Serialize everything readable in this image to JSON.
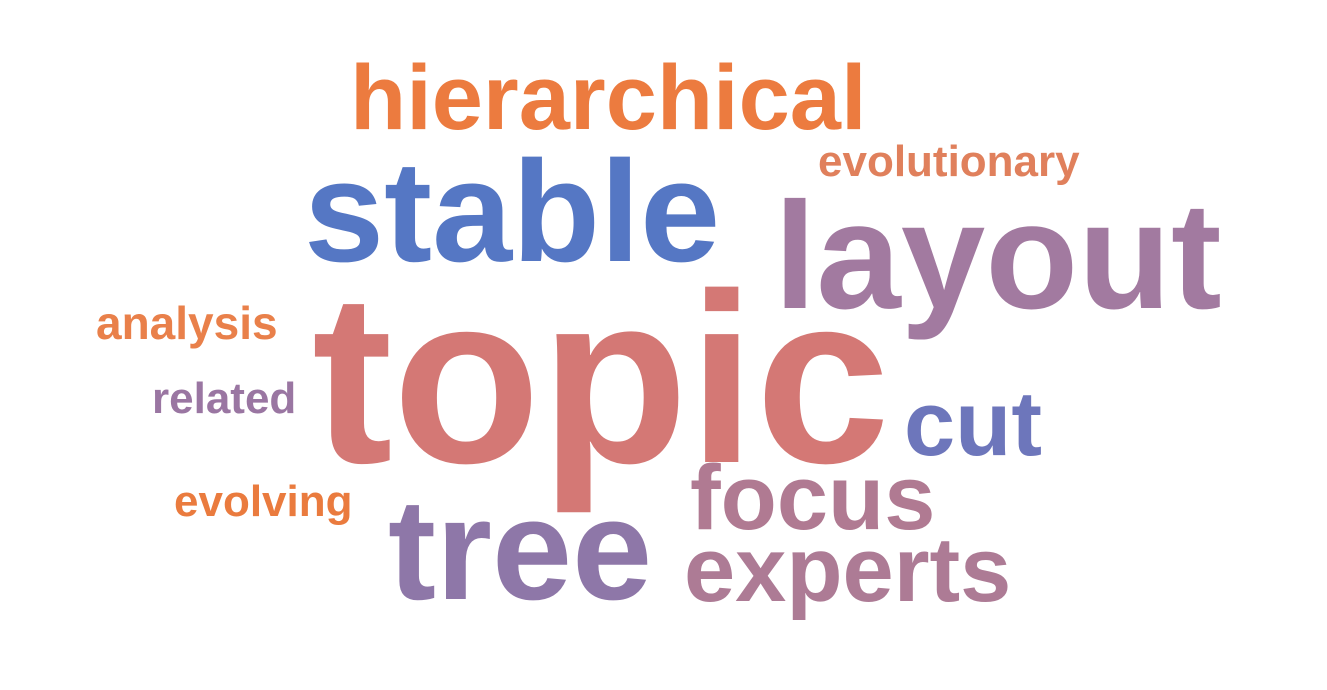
{
  "words": [
    {
      "id": "hierarchical",
      "text": "hierarchical",
      "color": "#ec7b3f"
    },
    {
      "id": "evolutionary",
      "text": "evolutionary",
      "color": "#e0805c"
    },
    {
      "id": "stable",
      "text": "stable",
      "color": "#5577c4"
    },
    {
      "id": "layout",
      "text": "layout",
      "color": "#a27aa0"
    },
    {
      "id": "analysis",
      "text": "analysis",
      "color": "#e9804a"
    },
    {
      "id": "topic",
      "text": "topic",
      "color": "#d47875"
    },
    {
      "id": "related",
      "text": "related",
      "color": "#9a76a2"
    },
    {
      "id": "cut",
      "text": "cut",
      "color": "#6d76bb"
    },
    {
      "id": "evolving",
      "text": "evolving",
      "color": "#ea7b3e"
    },
    {
      "id": "focus",
      "text": "focus",
      "color": "#b07a92"
    },
    {
      "id": "tree",
      "text": "tree",
      "color": "#8e77a8"
    },
    {
      "id": "experts",
      "text": "experts",
      "color": "#ad7b95"
    }
  ]
}
